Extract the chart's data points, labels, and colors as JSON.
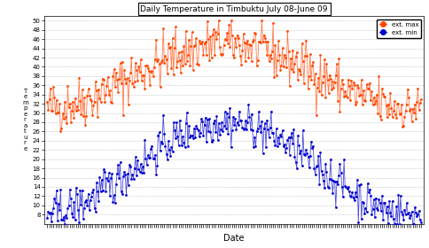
{
  "title": "Daily Temperature in Timbuktu July 08-June 09",
  "xlabel": "Date",
  "ylim": [
    6,
    51
  ],
  "yticks": [
    8,
    10,
    12,
    14,
    16,
    18,
    20,
    22,
    24,
    26,
    28,
    30,
    32,
    34,
    36,
    38,
    40,
    42,
    44,
    46,
    48,
    50
  ],
  "color_max": "#FF4500",
  "color_min": "#0000CD",
  "legend_max": "ext. max",
  "legend_min": "ext. min",
  "background_color": "#ffffff",
  "grid_color": "#aaaaaa",
  "ylabel_letters": [
    "T",
    "e",
    "m",
    "p",
    "e",
    "r",
    "a",
    "t",
    "u",
    "r",
    "e"
  ],
  "n_days": 365,
  "seed": 42,
  "max_base": 38,
  "max_amp": 7,
  "max_phase": 175,
  "min_base": 18,
  "min_amp": 10,
  "min_phase": 175,
  "max_noise": 2.8,
  "min_noise": 2.2
}
